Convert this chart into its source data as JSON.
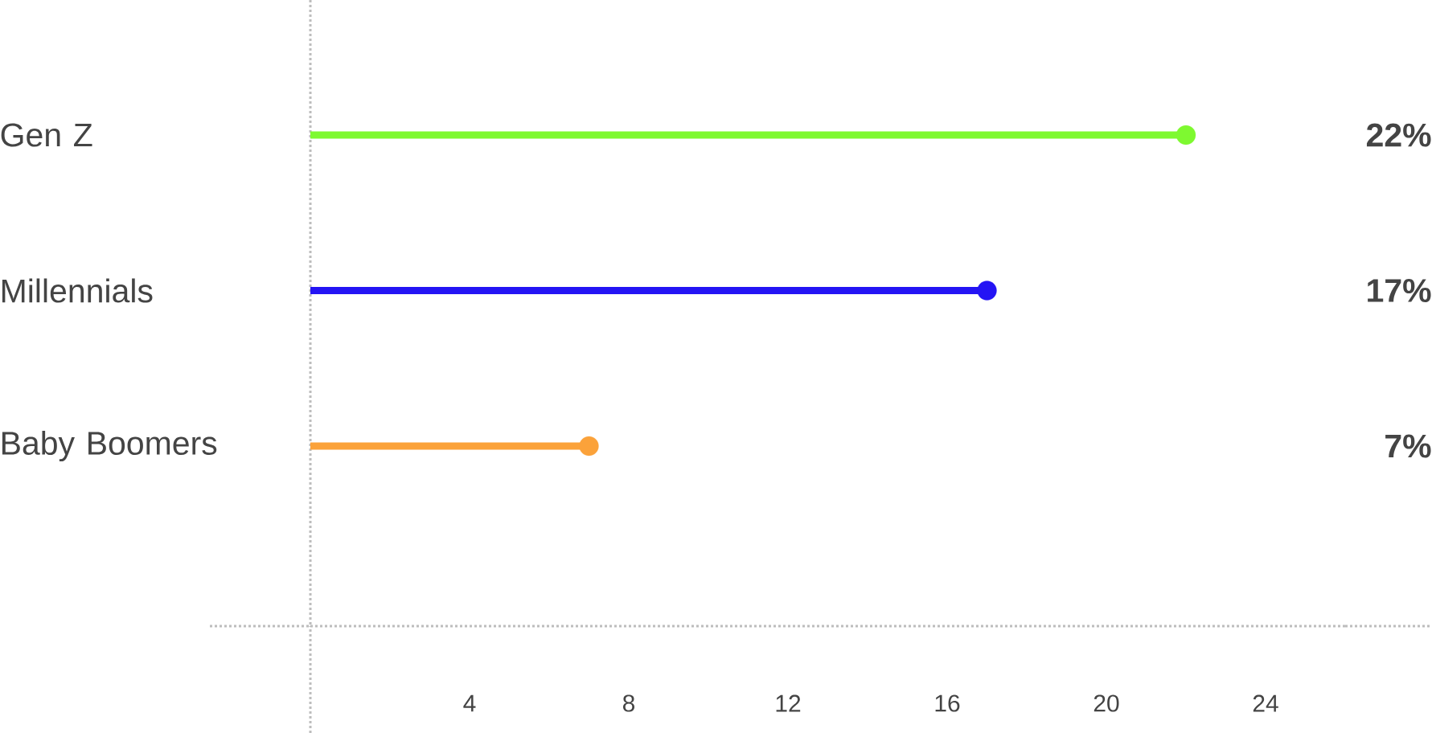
{
  "chart_data": {
    "type": "lollipop",
    "orientation": "horizontal",
    "categories": [
      "Gen Z",
      "Millennials",
      "Baby Boomers"
    ],
    "values": [
      22,
      17,
      7
    ],
    "colors": [
      "#7ef930",
      "#2414f4",
      "#fba23a"
    ],
    "value_labels": [
      "22%",
      "17%",
      "7%"
    ],
    "xlim": [
      0,
      26
    ],
    "xticks": [
      4,
      8,
      12,
      16,
      20,
      24
    ],
    "marker": "circle"
  }
}
